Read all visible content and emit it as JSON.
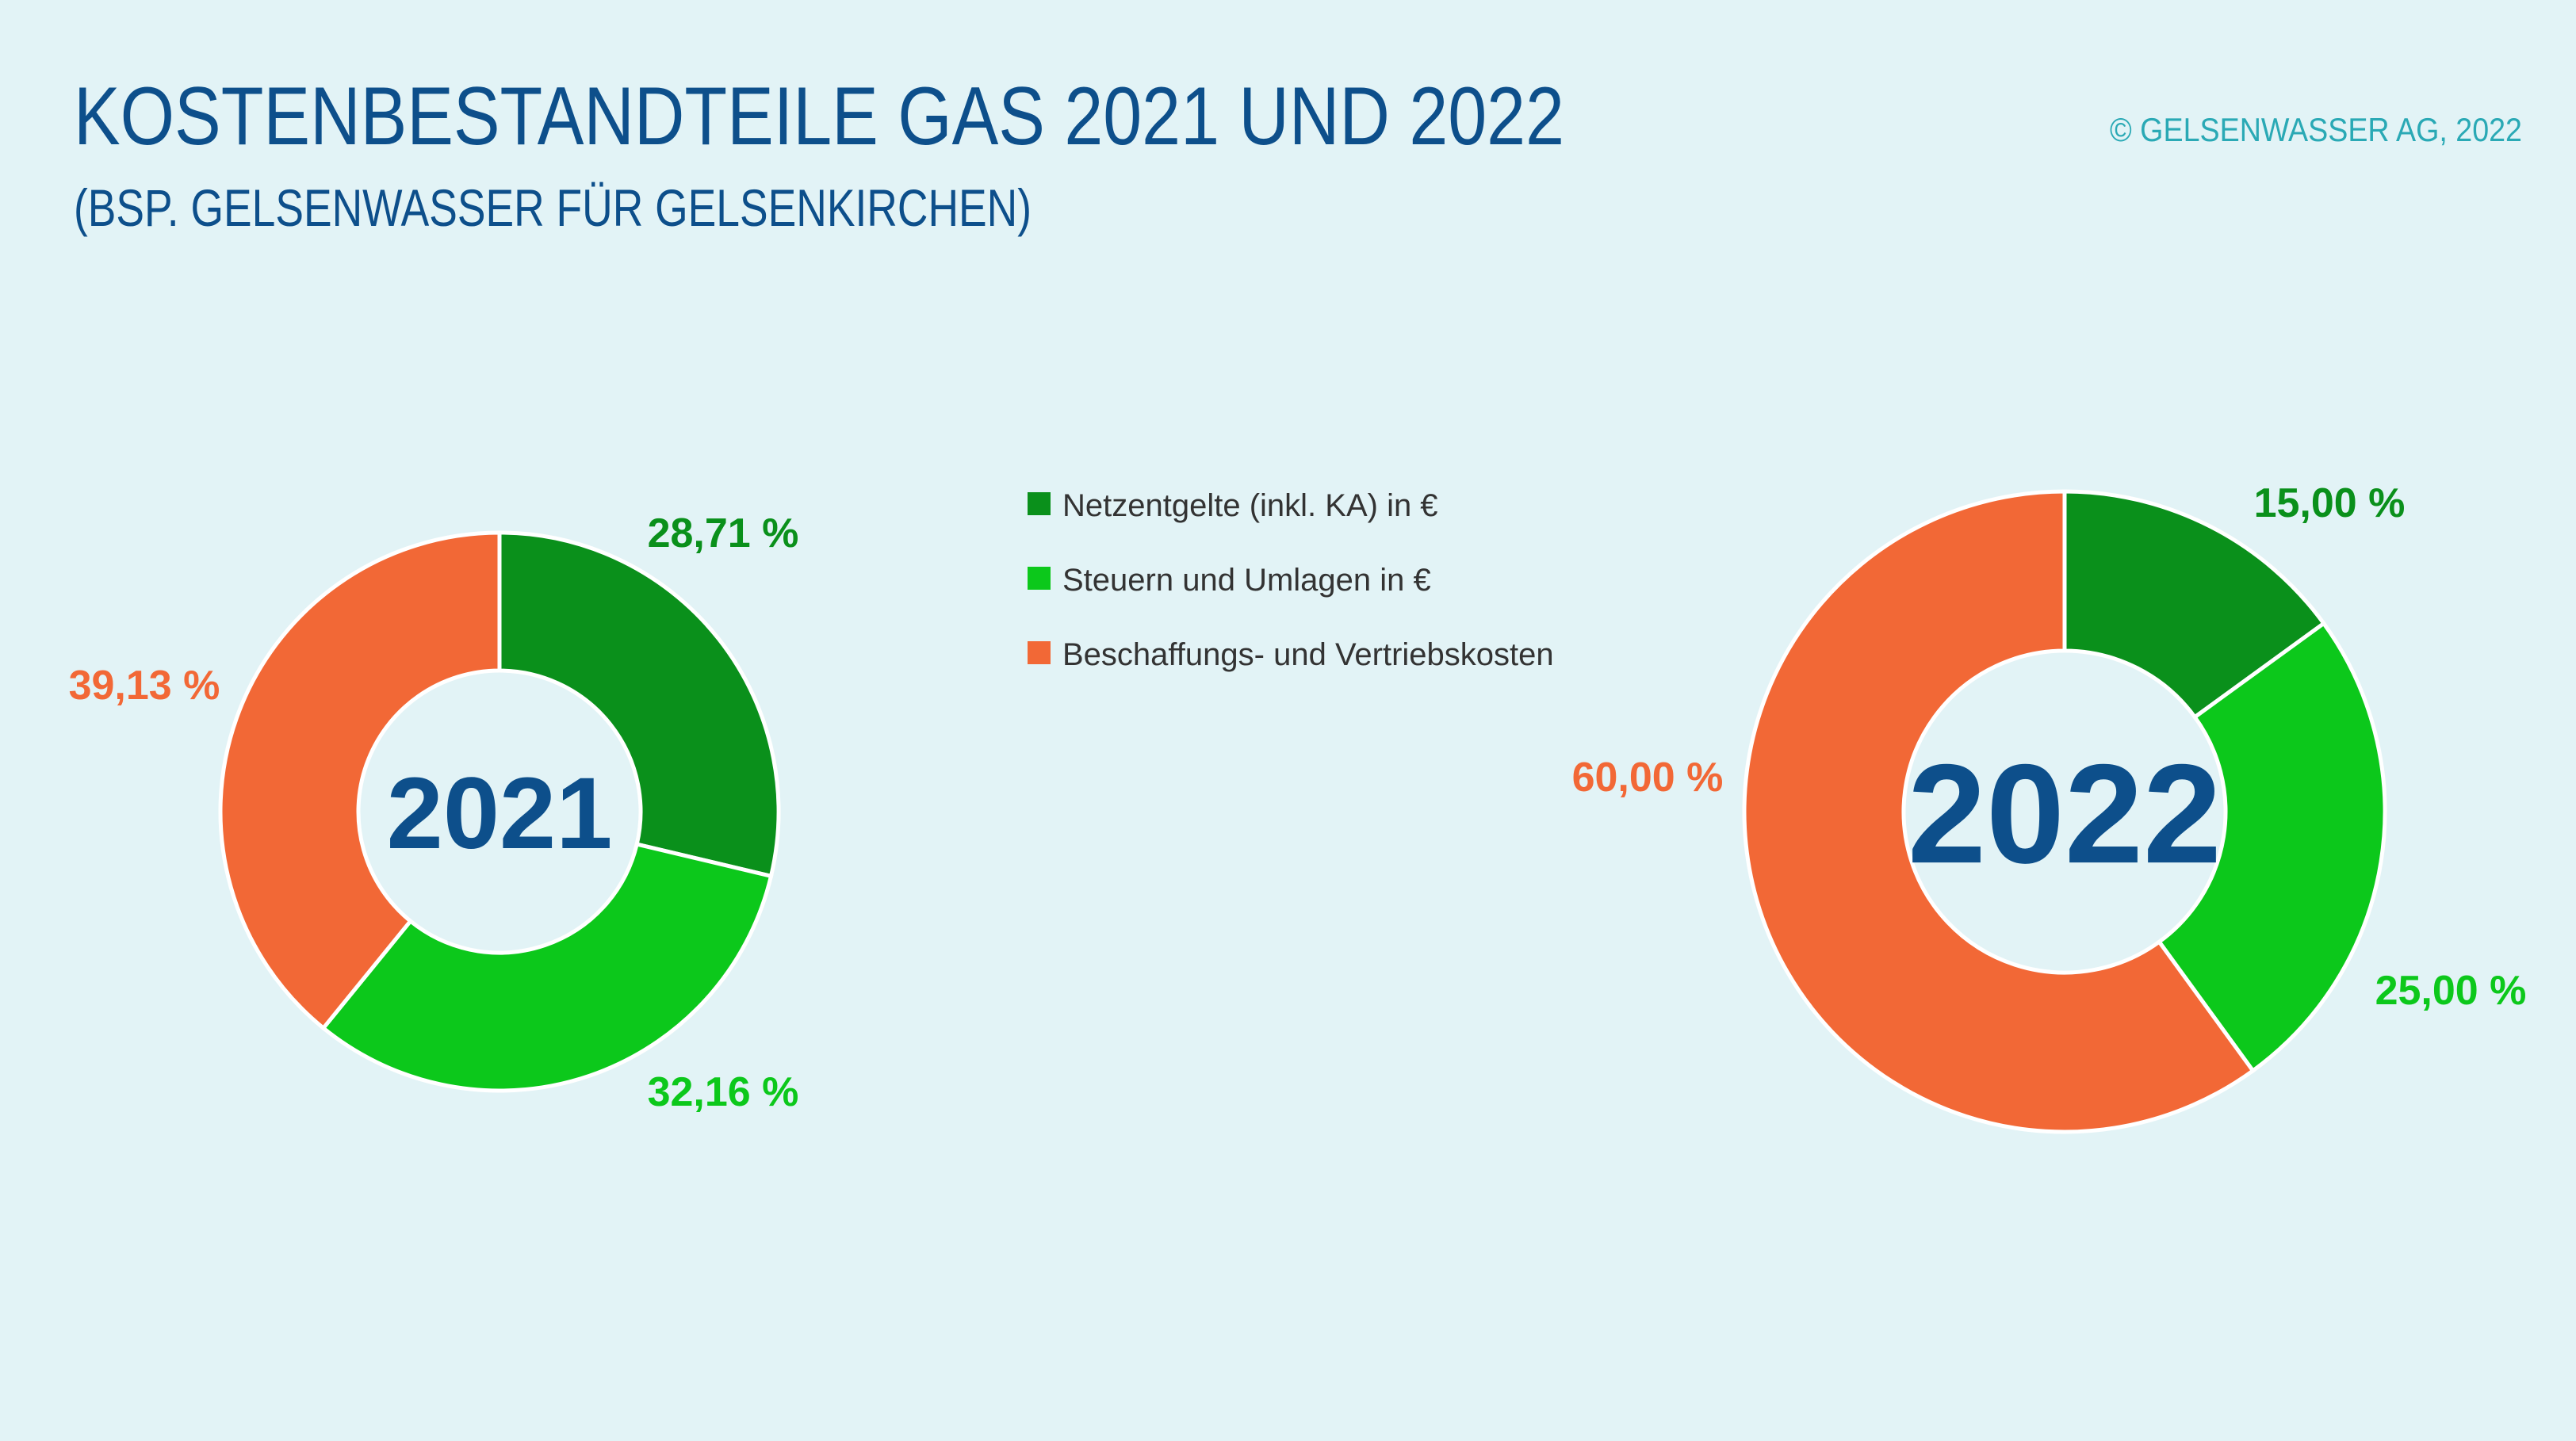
{
  "header": {
    "title": "KOSTENBESTANDTEILE GAS 2021 UND 2022",
    "subtitle": "(BSP. GELSENWASSER FÜR GELSENKIRCHEN)",
    "copyright": "© GELSENWASSER AG, 2022"
  },
  "legend": {
    "labels": [
      "Netzentgelte (inkl. KA) in €",
      "Steuern und Umlagen in €",
      "Beschaffungs- und Vertriebskosten"
    ],
    "colors": [
      "#0a901b",
      "#0cc81b",
      "#f26836"
    ]
  },
  "chart_data": [
    {
      "type": "donut",
      "center_label": "2021",
      "values": [
        28.71,
        32.16,
        39.13
      ],
      "value_labels": [
        "28,71 %",
        "32,16 %",
        "39,13 %"
      ]
    },
    {
      "type": "donut",
      "center_label": "2022",
      "values": [
        15,
        25,
        60
      ],
      "value_labels": [
        "15,00 %",
        "25,00 %",
        "60,00 %"
      ]
    }
  ]
}
